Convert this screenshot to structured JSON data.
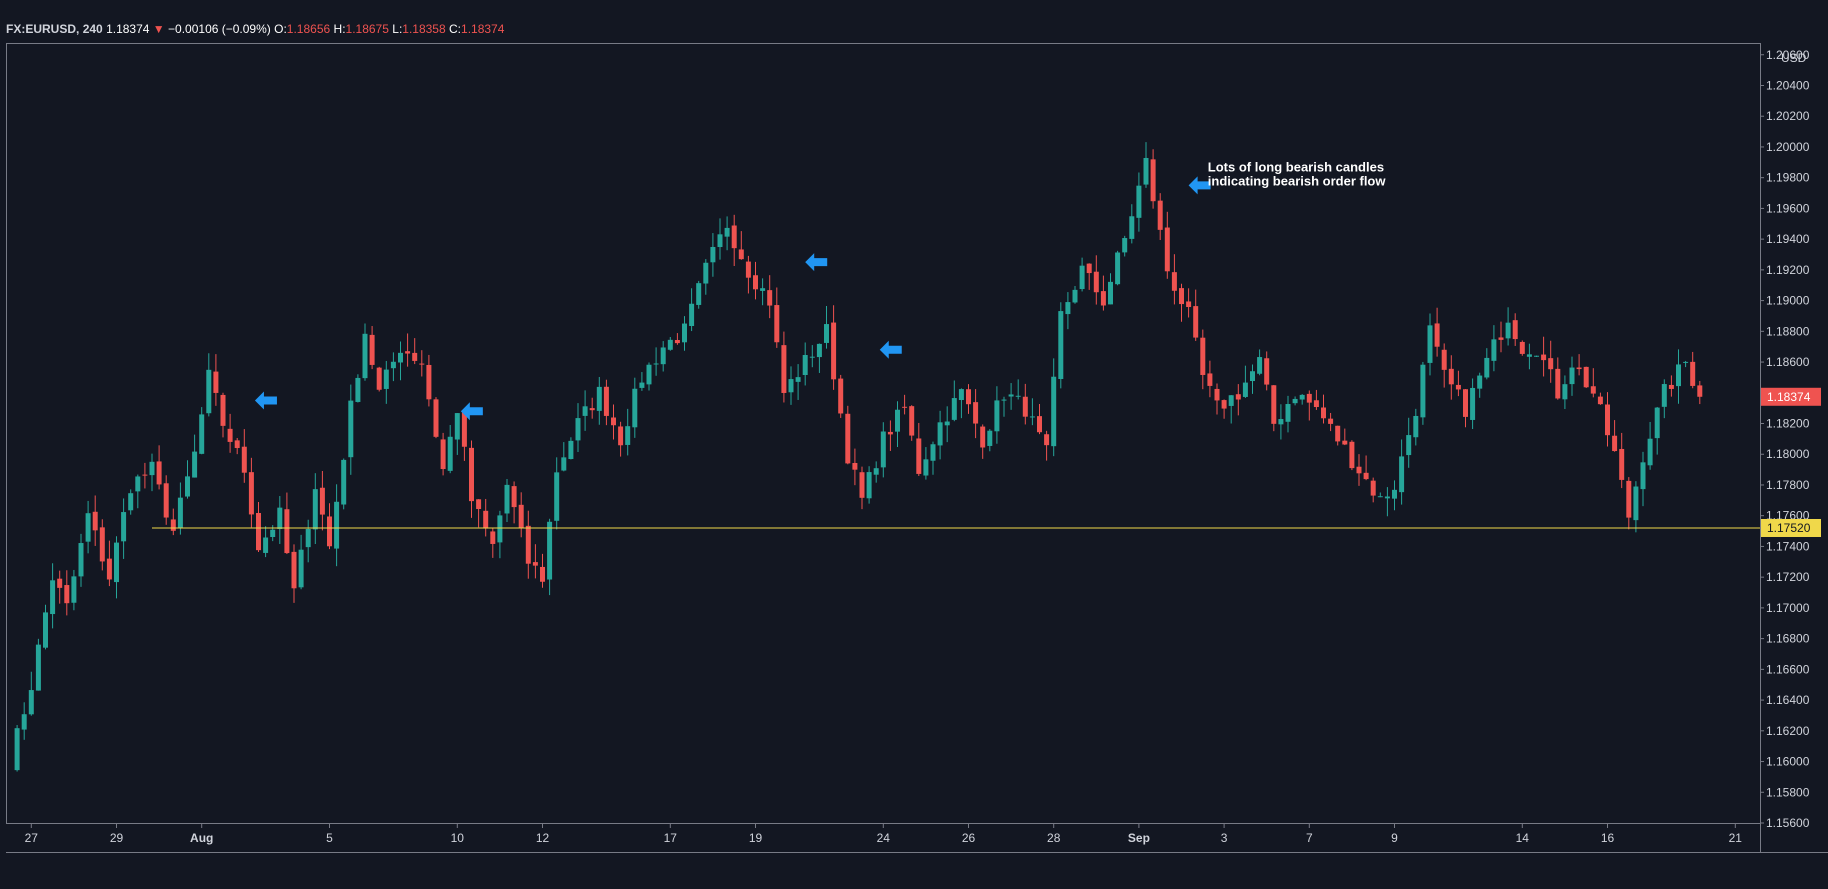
{
  "header": {
    "symbol": "FX:EURUSD,",
    "interval": "240",
    "last": "1.18374",
    "direction_glyph": "▼",
    "change": "−0.00106 (−0.09%)",
    "o_label": "O:",
    "o_value": "1.18656",
    "h_label": "H:",
    "h_value": "1.18675",
    "l_label": "L:",
    "l_value": "1.18358",
    "c_label": "C:",
    "c_value": "1.18374"
  },
  "colors": {
    "background": "#131722",
    "bull": "#26a69a",
    "bear": "#ef5350",
    "support_line": "#f0d84a",
    "arrow": "#2196f3",
    "text": "#d1d4dc"
  },
  "chart_data": {
    "type": "candlestick",
    "symbol": "FX:EURUSD",
    "interval": "240",
    "currency_label": "USD",
    "y_ticks": [
      "1.20600",
      "1.20400",
      "1.20200",
      "1.20000",
      "1.19800",
      "1.19600",
      "1.19400",
      "1.19200",
      "1.19000",
      "1.18800",
      "1.18600",
      "1.18400",
      "1.18200",
      "1.18000",
      "1.17800",
      "1.17600",
      "1.17400",
      "1.17200",
      "1.17000",
      "1.16800",
      "1.16600",
      "1.16400",
      "1.16200",
      "1.16000",
      "1.15800",
      "1.15600"
    ],
    "ylim": [
      1.156,
      1.2067
    ],
    "x_ticks": [
      {
        "label": "27",
        "bar": 3,
        "bold": false
      },
      {
        "label": "29",
        "bar": 15,
        "bold": false
      },
      {
        "label": "Aug",
        "bar": 27,
        "bold": true
      },
      {
        "label": "5",
        "bar": 45,
        "bold": false
      },
      {
        "label": "10",
        "bar": 63,
        "bold": false
      },
      {
        "label": "12",
        "bar": 75,
        "bold": false
      },
      {
        "label": "17",
        "bar": 93,
        "bold": false
      },
      {
        "label": "19",
        "bar": 105,
        "bold": false
      },
      {
        "label": "24",
        "bar": 123,
        "bold": false
      },
      {
        "label": "26",
        "bar": 135,
        "bold": false
      },
      {
        "label": "28",
        "bar": 147,
        "bold": false
      },
      {
        "label": "Sep",
        "bar": 159,
        "bold": true
      },
      {
        "label": "3",
        "bar": 171,
        "bold": false
      },
      {
        "label": "7",
        "bar": 183,
        "bold": false
      },
      {
        "label": "9",
        "bar": 195,
        "bold": false
      },
      {
        "label": "14",
        "bar": 213,
        "bold": false
      },
      {
        "label": "16",
        "bar": 225,
        "bold": false
      },
      {
        "label": "21",
        "bar": 243,
        "bold": false
      }
    ],
    "support_level": 1.1752,
    "support_label": "1.17520",
    "last_price": 1.18374,
    "last_price_label": "1.18374",
    "annotation": {
      "lines": [
        "Lots of long bearish candles",
        "indicating bearish order flow"
      ],
      "bar": 168,
      "price": 1.1984
    },
    "arrows": [
      {
        "bar": 34.5,
        "price": 1.1835
      },
      {
        "bar": 63.5,
        "price": 1.1828
      },
      {
        "bar": 112,
        "price": 1.1925
      },
      {
        "bar": 122.5,
        "price": 1.1868
      },
      {
        "bar": 166,
        "price": 1.1975
      }
    ],
    "path": [
      [
        0,
        1.16
      ],
      [
        3,
        1.165
      ],
      [
        6,
        1.172
      ],
      [
        8,
        1.17
      ],
      [
        11,
        1.176
      ],
      [
        14,
        1.172
      ],
      [
        17,
        1.178
      ],
      [
        20,
        1.179
      ],
      [
        23,
        1.175
      ],
      [
        26,
        1.18
      ],
      [
        28,
        1.185
      ],
      [
        30,
        1.182
      ],
      [
        33,
        1.179
      ],
      [
        35,
        1.174
      ],
      [
        38,
        1.176
      ],
      [
        40,
        1.171
      ],
      [
        43,
        1.178
      ],
      [
        45,
        1.174
      ],
      [
        48,
        1.183
      ],
      [
        50,
        1.188
      ],
      [
        52,
        1.184
      ],
      [
        55,
        1.187
      ],
      [
        58,
        1.186
      ],
      [
        61,
        1.179
      ],
      [
        63,
        1.183
      ],
      [
        65,
        1.177
      ],
      [
        68,
        1.174
      ],
      [
        70,
        1.178
      ],
      [
        73,
        1.173
      ],
      [
        75,
        1.172
      ],
      [
        77,
        1.179
      ],
      [
        80,
        1.182
      ],
      [
        83,
        1.184
      ],
      [
        86,
        1.181
      ],
      [
        89,
        1.185
      ],
      [
        92,
        1.187
      ],
      [
        95,
        1.188
      ],
      [
        98,
        1.192
      ],
      [
        101,
        1.195
      ],
      [
        104,
        1.192
      ],
      [
        107,
        1.19
      ],
      [
        109,
        1.184
      ],
      [
        112,
        1.186
      ],
      [
        115,
        1.188
      ],
      [
        118,
        1.18
      ],
      [
        120,
        1.177
      ],
      [
        123,
        1.181
      ],
      [
        126,
        1.183
      ],
      [
        128,
        1.179
      ],
      [
        131,
        1.182
      ],
      [
        134,
        1.184
      ],
      [
        137,
        1.181
      ],
      [
        140,
        1.184
      ],
      [
        143,
        1.183
      ],
      [
        146,
        1.18
      ],
      [
        148,
        1.189
      ],
      [
        151,
        1.192
      ],
      [
        154,
        1.19
      ],
      [
        157,
        1.194
      ],
      [
        160,
        1.199
      ],
      [
        163,
        1.192
      ],
      [
        166,
        1.189
      ],
      [
        168,
        1.185
      ],
      [
        170,
        1.183
      ],
      [
        173,
        1.184
      ],
      [
        176,
        1.186
      ],
      [
        178,
        1.182
      ],
      [
        181,
        1.184
      ],
      [
        184,
        1.183
      ],
      [
        187,
        1.181
      ],
      [
        190,
        1.179
      ],
      [
        193,
        1.177
      ],
      [
        195,
        1.178
      ],
      [
        198,
        1.183
      ],
      [
        200,
        1.188
      ],
      [
        202,
        1.185
      ],
      [
        205,
        1.183
      ],
      [
        208,
        1.186
      ],
      [
        211,
        1.189
      ],
      [
        213,
        1.187
      ],
      [
        215,
        1.187
      ],
      [
        218,
        1.184
      ],
      [
        220,
        1.186
      ],
      [
        223,
        1.184
      ],
      [
        226,
        1.18
      ],
      [
        228,
        1.176
      ],
      [
        230,
        1.18
      ],
      [
        233,
        1.184
      ],
      [
        236,
        1.186
      ],
      [
        238,
        1.1838
      ]
    ]
  }
}
